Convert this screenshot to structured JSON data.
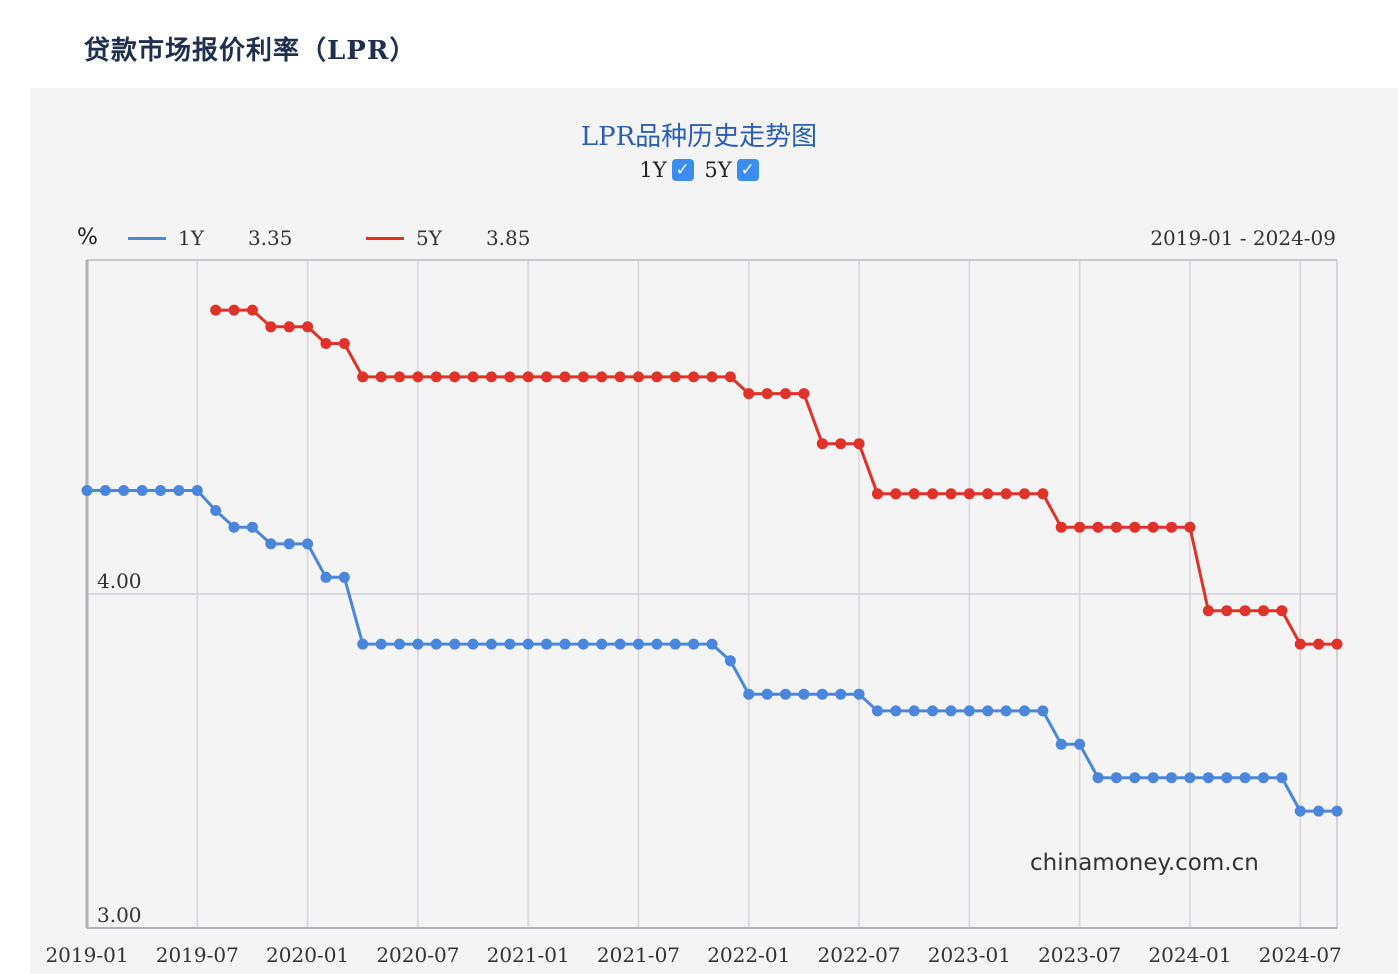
{
  "page": {
    "heading": "贷款市场报价利率（LPR）",
    "watermark": "chinamoney.com.cn"
  },
  "toggles": [
    {
      "label": "1Y",
      "checked": true
    },
    {
      "label": "5Y",
      "checked": true
    }
  ],
  "legend": {
    "unit": "%",
    "date_range": "2019-01 - 2024-09",
    "items": [
      {
        "label": "1Y",
        "value": "3.35",
        "color": "#4a86dc"
      },
      {
        "label": "5Y",
        "value": "3.85",
        "color": "#e03228"
      }
    ]
  },
  "chart_data": {
    "type": "line",
    "title": "LPR品种历史走势图",
    "xlabel": "",
    "ylabel": "%",
    "x_tick_labels": [
      "2019-01",
      "2019-07",
      "2020-01",
      "2020-07",
      "2021-01",
      "2021-07",
      "2022-01",
      "2022-07",
      "2023-01",
      "2023-07",
      "2024-01",
      "2024-07"
    ],
    "y_tick_labels": [
      "3.00",
      "4.00"
    ],
    "ylim": [
      3.0,
      5.0
    ],
    "x_range": [
      "2019-01",
      "2024-09"
    ],
    "grid": true,
    "legend_position": "top-left",
    "series": [
      {
        "name": "1Y",
        "color": "#4a86dc",
        "points": [
          [
            "2019-01",
            4.31
          ],
          [
            "2019-02",
            4.31
          ],
          [
            "2019-03",
            4.31
          ],
          [
            "2019-04",
            4.31
          ],
          [
            "2019-05",
            4.31
          ],
          [
            "2019-06",
            4.31
          ],
          [
            "2019-07",
            4.31
          ],
          [
            "2019-08",
            4.25
          ],
          [
            "2019-09",
            4.2
          ],
          [
            "2019-10",
            4.2
          ],
          [
            "2019-11",
            4.15
          ],
          [
            "2019-12",
            4.15
          ],
          [
            "2020-01",
            4.15
          ],
          [
            "2020-02",
            4.05
          ],
          [
            "2020-03",
            4.05
          ],
          [
            "2020-04",
            3.85
          ],
          [
            "2020-05",
            3.85
          ],
          [
            "2020-06",
            3.85
          ],
          [
            "2020-07",
            3.85
          ],
          [
            "2020-08",
            3.85
          ],
          [
            "2020-09",
            3.85
          ],
          [
            "2020-10",
            3.85
          ],
          [
            "2020-11",
            3.85
          ],
          [
            "2020-12",
            3.85
          ],
          [
            "2021-01",
            3.85
          ],
          [
            "2021-02",
            3.85
          ],
          [
            "2021-03",
            3.85
          ],
          [
            "2021-04",
            3.85
          ],
          [
            "2021-05",
            3.85
          ],
          [
            "2021-06",
            3.85
          ],
          [
            "2021-07",
            3.85
          ],
          [
            "2021-08",
            3.85
          ],
          [
            "2021-09",
            3.85
          ],
          [
            "2021-10",
            3.85
          ],
          [
            "2021-11",
            3.85
          ],
          [
            "2021-12",
            3.8
          ],
          [
            "2022-01",
            3.7
          ],
          [
            "2022-02",
            3.7
          ],
          [
            "2022-03",
            3.7
          ],
          [
            "2022-04",
            3.7
          ],
          [
            "2022-05",
            3.7
          ],
          [
            "2022-06",
            3.7
          ],
          [
            "2022-07",
            3.7
          ],
          [
            "2022-08",
            3.65
          ],
          [
            "2022-09",
            3.65
          ],
          [
            "2022-10",
            3.65
          ],
          [
            "2022-11",
            3.65
          ],
          [
            "2022-12",
            3.65
          ],
          [
            "2023-01",
            3.65
          ],
          [
            "2023-02",
            3.65
          ],
          [
            "2023-03",
            3.65
          ],
          [
            "2023-04",
            3.65
          ],
          [
            "2023-05",
            3.65
          ],
          [
            "2023-06",
            3.55
          ],
          [
            "2023-07",
            3.55
          ],
          [
            "2023-08",
            3.45
          ],
          [
            "2023-09",
            3.45
          ],
          [
            "2023-10",
            3.45
          ],
          [
            "2023-11",
            3.45
          ],
          [
            "2023-12",
            3.45
          ],
          [
            "2024-01",
            3.45
          ],
          [
            "2024-02",
            3.45
          ],
          [
            "2024-03",
            3.45
          ],
          [
            "2024-04",
            3.45
          ],
          [
            "2024-05",
            3.45
          ],
          [
            "2024-06",
            3.45
          ],
          [
            "2024-07",
            3.35
          ],
          [
            "2024-08",
            3.35
          ],
          [
            "2024-09",
            3.35
          ]
        ]
      },
      {
        "name": "5Y",
        "color": "#e03228",
        "points": [
          [
            "2019-08",
            4.85
          ],
          [
            "2019-09",
            4.85
          ],
          [
            "2019-10",
            4.85
          ],
          [
            "2019-11",
            4.8
          ],
          [
            "2019-12",
            4.8
          ],
          [
            "2020-01",
            4.8
          ],
          [
            "2020-02",
            4.75
          ],
          [
            "2020-03",
            4.75
          ],
          [
            "2020-04",
            4.65
          ],
          [
            "2020-05",
            4.65
          ],
          [
            "2020-06",
            4.65
          ],
          [
            "2020-07",
            4.65
          ],
          [
            "2020-08",
            4.65
          ],
          [
            "2020-09",
            4.65
          ],
          [
            "2020-10",
            4.65
          ],
          [
            "2020-11",
            4.65
          ],
          [
            "2020-12",
            4.65
          ],
          [
            "2021-01",
            4.65
          ],
          [
            "2021-02",
            4.65
          ],
          [
            "2021-03",
            4.65
          ],
          [
            "2021-04",
            4.65
          ],
          [
            "2021-05",
            4.65
          ],
          [
            "2021-06",
            4.65
          ],
          [
            "2021-07",
            4.65
          ],
          [
            "2021-08",
            4.65
          ],
          [
            "2021-09",
            4.65
          ],
          [
            "2021-10",
            4.65
          ],
          [
            "2021-11",
            4.65
          ],
          [
            "2021-12",
            4.65
          ],
          [
            "2022-01",
            4.6
          ],
          [
            "2022-02",
            4.6
          ],
          [
            "2022-03",
            4.6
          ],
          [
            "2022-04",
            4.6
          ],
          [
            "2022-05",
            4.45
          ],
          [
            "2022-06",
            4.45
          ],
          [
            "2022-07",
            4.45
          ],
          [
            "2022-08",
            4.3
          ],
          [
            "2022-09",
            4.3
          ],
          [
            "2022-10",
            4.3
          ],
          [
            "2022-11",
            4.3
          ],
          [
            "2022-12",
            4.3
          ],
          [
            "2023-01",
            4.3
          ],
          [
            "2023-02",
            4.3
          ],
          [
            "2023-03",
            4.3
          ],
          [
            "2023-04",
            4.3
          ],
          [
            "2023-05",
            4.3
          ],
          [
            "2023-06",
            4.2
          ],
          [
            "2023-07",
            4.2
          ],
          [
            "2023-08",
            4.2
          ],
          [
            "2023-09",
            4.2
          ],
          [
            "2023-10",
            4.2
          ],
          [
            "2023-11",
            4.2
          ],
          [
            "2023-12",
            4.2
          ],
          [
            "2024-01",
            4.2
          ],
          [
            "2024-02",
            3.95
          ],
          [
            "2024-03",
            3.95
          ],
          [
            "2024-04",
            3.95
          ],
          [
            "2024-05",
            3.95
          ],
          [
            "2024-06",
            3.95
          ],
          [
            "2024-07",
            3.85
          ],
          [
            "2024-08",
            3.85
          ],
          [
            "2024-09",
            3.85
          ]
        ]
      }
    ]
  }
}
